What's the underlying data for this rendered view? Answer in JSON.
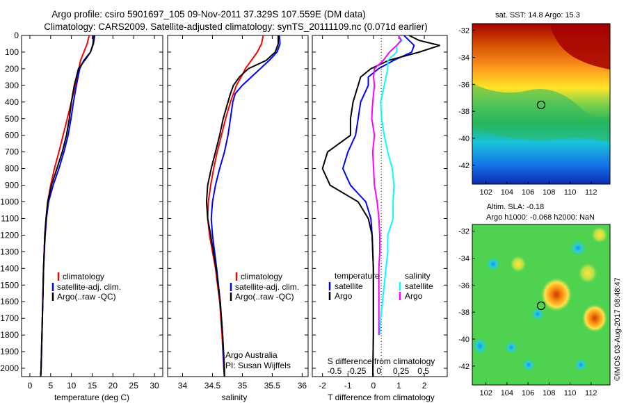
{
  "title": {
    "line1": "Argo profile: csiro 5901697_105 09-Nov-2011 37.329S 107.559E (DM data)",
    "line2": "Climatology: CARS2009. Satellite-adjusted climatology: synTS_20111109.nc (0.071d earlier)"
  },
  "colors": {
    "climatology": "#ff0000",
    "satellite": "#0000ff",
    "argo": "#000000",
    "salinity_satellite": "#00ffff",
    "salinity_argo": "#ff00ff"
  },
  "panels": {
    "temperature": {
      "xlabel": "temperature (deg C)"
    },
    "salinity": {
      "xlabel": "salinity",
      "note1": "Argo Australia",
      "note2": "PI: Susan Wijffels"
    },
    "difference": {
      "xlabel": "T difference from climatology",
      "xlabel_top": "S difference from climatology"
    }
  },
  "legend_profiles": [
    "climatology",
    "satellite-adj. clim.",
    "Argo(..raw -QC)"
  ],
  "legend_diff": {
    "temp_head": "temperature",
    "sal_head": "salinity",
    "temp_sat": "satellite",
    "temp_argo": "Argo",
    "sal_sat": "satellite",
    "sal_argo": "Argo"
  },
  "maps": {
    "sst_title": "sat. SST: 14.8 Argo: 15.3",
    "sla_title1": "Altim. SLA: -0.18",
    "sla_title2": "Argo h1000: -0.068 h2000: NaN",
    "xticks": [
      "102",
      "104",
      "106",
      "108",
      "110",
      "112"
    ],
    "yticks": [
      "-32",
      "-34",
      "-36",
      "-38",
      "-40",
      "-42"
    ],
    "credit": "©IMOS 03-Aug-2017 08:48:47"
  },
  "chart_data": [
    {
      "type": "line",
      "title": "",
      "xlabel": "temperature (deg C)",
      "ylabel": "",
      "xlim": [
        -2,
        32
      ],
      "ylim": [
        2050,
        0
      ],
      "xticks": [
        0,
        5,
        10,
        15,
        20,
        25,
        30
      ],
      "yticks": [
        0,
        100,
        200,
        300,
        400,
        500,
        600,
        700,
        800,
        900,
        1000,
        1100,
        1200,
        1300,
        1400,
        1500,
        1600,
        1700,
        1800,
        1900,
        2000
      ],
      "series": [
        {
          "name": "climatology",
          "color": "#ff0000",
          "depth": [
            0,
            50,
            100,
            150,
            200,
            300,
            400,
            500,
            600,
            700,
            800,
            900,
            1000,
            1100,
            1200,
            1400,
            1600,
            1800,
            2000,
            2050
          ],
          "values": [
            14.3,
            13.8,
            13.0,
            12.2,
            11.8,
            10.9,
            10.0,
            9.0,
            8.0,
            7.0,
            5.9,
            5.0,
            4.3,
            3.9,
            3.6,
            3.3,
            3.1,
            2.9,
            2.7,
            2.6
          ]
        },
        {
          "name": "satellite-adj. clim.",
          "color": "#0000ff",
          "depth": [
            0,
            50,
            100,
            150,
            200,
            300,
            400,
            500,
            600,
            700,
            800,
            900,
            1000,
            1100,
            1200,
            1400,
            1600,
            1800,
            2000,
            2050
          ],
          "values": [
            15.3,
            15.2,
            14.6,
            13.0,
            12.0,
            11.2,
            10.5,
            9.9,
            9.2,
            8.2,
            7.0,
            5.6,
            4.5,
            4.0,
            3.7,
            3.3,
            3.1,
            2.9,
            2.7,
            2.6
          ]
        },
        {
          "name": "Argo(..raw -QC)",
          "color": "#000000",
          "depth": [
            0,
            50,
            100,
            150,
            200,
            300,
            400,
            500,
            600,
            700,
            800,
            900,
            1000,
            1100,
            1200,
            1400,
            1600,
            1800,
            2000,
            2050
          ],
          "values": [
            15.6,
            15.3,
            14.6,
            13.2,
            11.7,
            10.7,
            10.0,
            9.5,
            8.8,
            7.8,
            6.5,
            5.2,
            4.3,
            3.9,
            3.6,
            3.3,
            3.1,
            2.9,
            2.7,
            2.6
          ]
        }
      ]
    },
    {
      "type": "line",
      "title": "",
      "xlabel": "salinity",
      "ylabel": "",
      "xlim": [
        33.75,
        36.1
      ],
      "ylim": [
        2050,
        0
      ],
      "xticks": [
        34,
        34.5,
        35,
        35.5,
        36
      ],
      "series": [
        {
          "name": "climatology",
          "color": "#ff0000",
          "depth": [
            0,
            50,
            100,
            150,
            200,
            250,
            300,
            350,
            400,
            500,
            600,
            700,
            800,
            900,
            1000,
            1100,
            1200,
            1400,
            1600,
            1800,
            2000,
            2050
          ],
          "values": [
            35.35,
            35.32,
            35.25,
            35.15,
            35.05,
            34.98,
            34.9,
            34.85,
            34.8,
            34.72,
            34.65,
            34.58,
            34.52,
            34.47,
            34.43,
            34.42,
            34.45,
            34.55,
            34.62,
            34.66,
            34.69,
            34.7
          ]
        },
        {
          "name": "satellite-adj. clim.",
          "color": "#0000ff",
          "depth": [
            0,
            50,
            100,
            150,
            200,
            250,
            300,
            350,
            400,
            500,
            600,
            700,
            800,
            900,
            1000,
            1100,
            1200,
            1400,
            1600,
            1800,
            2000,
            2050
          ],
          "values": [
            35.62,
            35.63,
            35.58,
            35.45,
            35.3,
            35.15,
            35.0,
            34.88,
            34.84,
            34.8,
            34.76,
            34.7,
            34.62,
            34.55,
            34.5,
            34.48,
            34.5,
            34.57,
            34.63,
            34.67,
            34.69,
            34.7
          ]
        },
        {
          "name": "Argo(..raw -QC)",
          "color": "#000000",
          "depth": [
            0,
            50,
            100,
            150,
            200,
            250,
            300,
            350,
            400,
            500,
            600,
            700,
            800,
            900,
            1000,
            1100,
            1200,
            1400,
            1600,
            1800,
            2000,
            2050
          ],
          "values": [
            35.6,
            35.6,
            35.55,
            35.4,
            35.1,
            34.95,
            34.85,
            34.8,
            34.76,
            34.68,
            34.62,
            34.55,
            34.48,
            34.42,
            34.4,
            34.42,
            34.47,
            34.56,
            34.63,
            34.67,
            34.7,
            34.7
          ]
        }
      ]
    },
    {
      "type": "line",
      "title": "",
      "xlabel": "T difference from climatology",
      "xlabel_top": "S difference from climatology",
      "xlim": [
        -2.4,
        2.9
      ],
      "ylim": [
        2050,
        0
      ],
      "xticks": [
        -2,
        -1,
        0,
        1,
        2
      ],
      "xticklabels": [
        "-2",
        "-1",
        "0",
        "1",
        "2"
      ],
      "xticks_top": [
        -0.5,
        -0.25,
        0,
        0.25,
        0.5
      ],
      "series": [
        {
          "name": "temperature satellite",
          "color": "#0000ff",
          "variable": "T",
          "depth": [
            0,
            30,
            60,
            100,
            150,
            200,
            250,
            300,
            400,
            500,
            600,
            700,
            800,
            900,
            1000,
            1100,
            1200,
            1400,
            1600,
            1800,
            2000,
            2050
          ],
          "values": [
            1.2,
            1.4,
            1.6,
            1.5,
            0.8,
            0.2,
            -0.2,
            -0.2,
            -0.5,
            -0.6,
            -0.7,
            -1.0,
            -1.2,
            -0.9,
            -0.3,
            -0.1,
            -0.05,
            0.0,
            0.0,
            0.0,
            -0.02,
            -0.02
          ]
        },
        {
          "name": "temperature Argo",
          "color": "#000000",
          "variable": "T",
          "depth": [
            0,
            30,
            60,
            100,
            150,
            200,
            250,
            300,
            400,
            500,
            600,
            700,
            800,
            900,
            1000,
            1100,
            1200,
            1400,
            1600,
            1800,
            2000,
            2050
          ],
          "values": [
            1.4,
            1.8,
            2.6,
            1.8,
            0.6,
            -0.1,
            -0.5,
            -0.6,
            -0.8,
            -0.9,
            -0.9,
            -1.8,
            -2.0,
            -1.7,
            -0.6,
            -0.2,
            -0.05,
            0.0,
            0.0,
            0.0,
            -0.02,
            -0.02
          ]
        },
        {
          "name": "salinity satellite",
          "color": "#00ffff",
          "variable": "S",
          "depth": [
            0,
            30,
            60,
            100,
            150,
            200,
            250,
            300,
            400,
            500,
            600,
            700,
            800,
            900,
            1000,
            1100,
            1200,
            1300,
            1400,
            1500,
            1600,
            1700,
            1800
          ],
          "values": [
            0.22,
            0.26,
            0.2,
            0.2,
            0.1,
            0.1,
            0.08,
            0.06,
            0.02,
            0.03,
            0.06,
            0.1,
            0.15,
            0.17,
            0.16,
            0.16,
            0.1,
            0.1,
            0.08,
            0.06,
            0.04,
            0.02,
            0.01
          ]
        },
        {
          "name": "salinity Argo",
          "color": "#ff00ff",
          "variable": "S",
          "depth": [
            0,
            30,
            60,
            100,
            150,
            200,
            250,
            300,
            400,
            500,
            600,
            700,
            800,
            900,
            1000,
            1100,
            1200,
            1300,
            1400,
            1500,
            1600,
            1700,
            1800
          ],
          "values": [
            0.22,
            0.25,
            0.2,
            0.12,
            0.05,
            -0.05,
            -0.06,
            -0.05,
            -0.07,
            -0.08,
            -0.05,
            -0.07,
            -0.06,
            -0.05,
            -0.02,
            0.0,
            0.01,
            0.01,
            0.0,
            0.0,
            0.0,
            0.0,
            0.0
          ]
        }
      ]
    }
  ]
}
